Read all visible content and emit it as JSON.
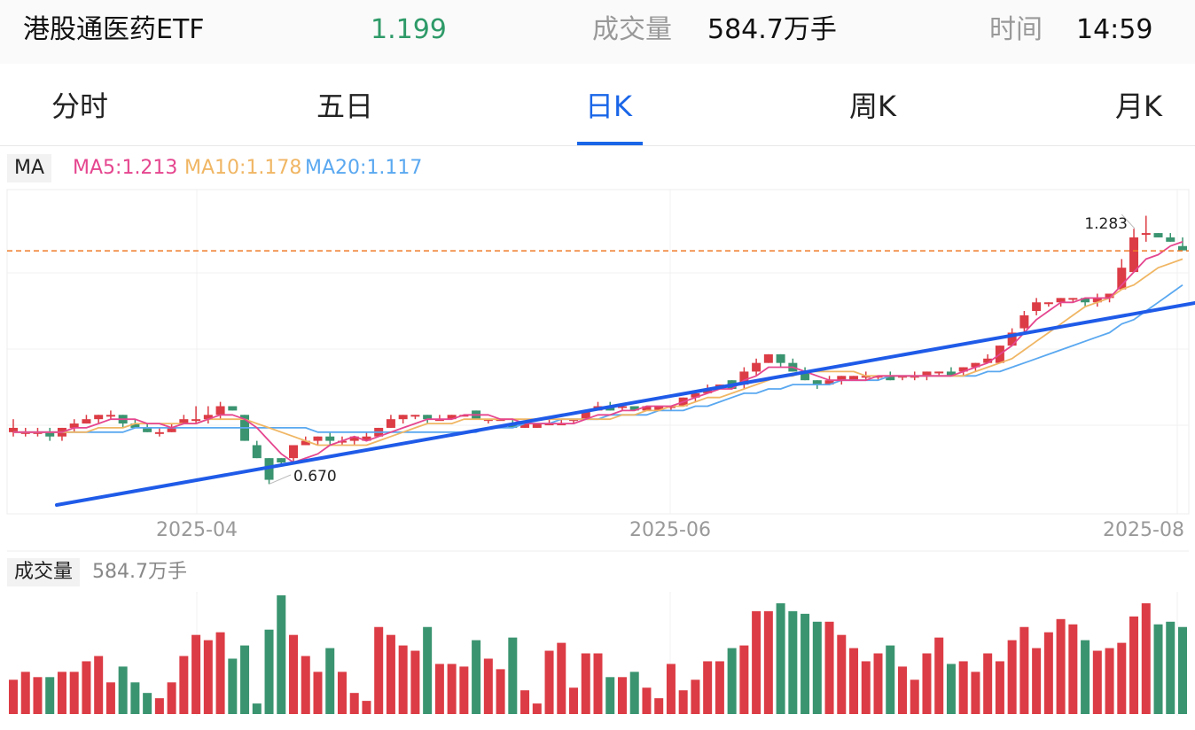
{
  "header": {
    "name": "港股通医药ETF",
    "price": "1.199",
    "volume_label": "成交量",
    "volume_value": "584.7万手",
    "time_label": "时间",
    "time_value": "14:59"
  },
  "tabs": [
    "分时",
    "五日",
    "日K",
    "周K",
    "月K"
  ],
  "active_tab": "日K",
  "ma_legend": {
    "tag": "MA",
    "ma5": "MA5:1.213",
    "ma10": "MA10:1.178",
    "ma20": "MA20:1.117"
  },
  "volume_legend": {
    "tag": "成交量",
    "value": "584.7万手"
  },
  "colors": {
    "up": "#dc3c45",
    "down": "#3a9470",
    "ma5": "#e5468f",
    "ma10": "#f0b664",
    "ma20": "#5aa8f0",
    "trendline": "#1f5be8",
    "price_line": "#f07c2a",
    "accent": "#1a66e8"
  },
  "chart_data": {
    "type": "candlestick",
    "x_tick_labels": [
      "2025-04",
      "2025-06",
      "2025-08"
    ],
    "annotations": {
      "high": "1.283",
      "low": "0.670"
    },
    "current_price": 1.199,
    "candles": [
      [
        0.78,
        0.79,
        0.77,
        0.81,
        13
      ],
      [
        0.78,
        0.78,
        0.77,
        0.79,
        16
      ],
      [
        0.78,
        0.78,
        0.77,
        0.79,
        14
      ],
      [
        0.78,
        0.77,
        0.76,
        0.79,
        14
      ],
      [
        0.77,
        0.79,
        0.76,
        0.79,
        16
      ],
      [
        0.79,
        0.8,
        0.78,
        0.81,
        16
      ],
      [
        0.8,
        0.81,
        0.8,
        0.82,
        20
      ],
      [
        0.81,
        0.82,
        0.8,
        0.82,
        22
      ],
      [
        0.82,
        0.82,
        0.81,
        0.83,
        12
      ],
      [
        0.82,
        0.8,
        0.79,
        0.82,
        18
      ],
      [
        0.8,
        0.79,
        0.79,
        0.81,
        12
      ],
      [
        0.79,
        0.78,
        0.78,
        0.8,
        8
      ],
      [
        0.78,
        0.78,
        0.77,
        0.79,
        6
      ],
      [
        0.78,
        0.79,
        0.78,
        0.8,
        12
      ],
      [
        0.8,
        0.81,
        0.8,
        0.82,
        22
      ],
      [
        0.81,
        0.81,
        0.8,
        0.84,
        30
      ],
      [
        0.81,
        0.82,
        0.8,
        0.84,
        28
      ],
      [
        0.82,
        0.84,
        0.81,
        0.85,
        31
      ],
      [
        0.84,
        0.83,
        0.83,
        0.84,
        21
      ],
      [
        0.82,
        0.76,
        0.76,
        0.82,
        26
      ],
      [
        0.75,
        0.72,
        0.72,
        0.76,
        4
      ],
      [
        0.72,
        0.67,
        0.66,
        0.72,
        32
      ],
      [
        0.72,
        0.71,
        0.7,
        0.72,
        45
      ],
      [
        0.72,
        0.75,
        0.71,
        0.75,
        30
      ],
      [
        0.75,
        0.76,
        0.75,
        0.77,
        22
      ],
      [
        0.76,
        0.77,
        0.75,
        0.77,
        16
      ],
      [
        0.77,
        0.76,
        0.75,
        0.78,
        25
      ],
      [
        0.76,
        0.76,
        0.75,
        0.77,
        16
      ],
      [
        0.76,
        0.77,
        0.75,
        0.77,
        8
      ],
      [
        0.76,
        0.77,
        0.76,
        0.78,
        5
      ],
      [
        0.77,
        0.79,
        0.77,
        0.79,
        33
      ],
      [
        0.79,
        0.81,
        0.79,
        0.82,
        30
      ],
      [
        0.81,
        0.82,
        0.8,
        0.82,
        26
      ],
      [
        0.82,
        0.82,
        0.81,
        0.82,
        24
      ],
      [
        0.82,
        0.81,
        0.8,
        0.82,
        33
      ],
      [
        0.81,
        0.81,
        0.81,
        0.82,
        19
      ],
      [
        0.81,
        0.82,
        0.81,
        0.82,
        19
      ],
      [
        0.82,
        0.82,
        0.82,
        0.82,
        18
      ],
      [
        0.83,
        0.81,
        0.81,
        0.83,
        28
      ],
      [
        0.81,
        0.81,
        0.8,
        0.81,
        21
      ],
      [
        0.81,
        0.81,
        0.81,
        0.81,
        17
      ],
      [
        0.8,
        0.79,
        0.79,
        0.81,
        29
      ],
      [
        0.79,
        0.8,
        0.79,
        0.8,
        9
      ],
      [
        0.79,
        0.8,
        0.79,
        0.8,
        4
      ],
      [
        0.8,
        0.8,
        0.8,
        0.81,
        24
      ],
      [
        0.8,
        0.8,
        0.8,
        0.81,
        27
      ],
      [
        0.81,
        0.81,
        0.8,
        0.81,
        10
      ],
      [
        0.81,
        0.83,
        0.81,
        0.83,
        23
      ],
      [
        0.83,
        0.84,
        0.83,
        0.85,
        23
      ],
      [
        0.84,
        0.83,
        0.83,
        0.85,
        14
      ],
      [
        0.84,
        0.84,
        0.83,
        0.84,
        14
      ],
      [
        0.84,
        0.83,
        0.83,
        0.84,
        16
      ],
      [
        0.83,
        0.84,
        0.83,
        0.84,
        10
      ],
      [
        0.83,
        0.84,
        0.83,
        0.84,
        6
      ],
      [
        0.84,
        0.84,
        0.83,
        0.84,
        19
      ],
      [
        0.84,
        0.86,
        0.84,
        0.86,
        9
      ],
      [
        0.86,
        0.87,
        0.85,
        0.87,
        13
      ],
      [
        0.87,
        0.88,
        0.87,
        0.89,
        20
      ],
      [
        0.88,
        0.89,
        0.88,
        0.89,
        20
      ],
      [
        0.9,
        0.88,
        0.88,
        0.9,
        25
      ],
      [
        0.89,
        0.92,
        0.88,
        0.93,
        26
      ],
      [
        0.92,
        0.94,
        0.91,
        0.95,
        39
      ],
      [
        0.94,
        0.96,
        0.94,
        0.96,
        39
      ],
      [
        0.96,
        0.94,
        0.93,
        0.96,
        42
      ],
      [
        0.94,
        0.92,
        0.92,
        0.95,
        39
      ],
      [
        0.92,
        0.9,
        0.9,
        0.93,
        38
      ],
      [
        0.9,
        0.89,
        0.88,
        0.9,
        35
      ],
      [
        0.89,
        0.9,
        0.89,
        0.91,
        35
      ],
      [
        0.9,
        0.91,
        0.89,
        0.91,
        30
      ],
      [
        0.9,
        0.91,
        0.9,
        0.91,
        25
      ],
      [
        0.91,
        0.91,
        0.9,
        0.92,
        20
      ],
      [
        0.91,
        0.91,
        0.9,
        0.91,
        23
      ],
      [
        0.91,
        0.9,
        0.9,
        0.92,
        26
      ],
      [
        0.91,
        0.91,
        0.9,
        0.91,
        18
      ],
      [
        0.91,
        0.91,
        0.9,
        0.92,
        13
      ],
      [
        0.91,
        0.92,
        0.9,
        0.92,
        23
      ],
      [
        0.92,
        0.92,
        0.91,
        0.92,
        29
      ],
      [
        0.92,
        0.91,
        0.91,
        0.93,
        19
      ],
      [
        0.92,
        0.93,
        0.91,
        0.93,
        20
      ],
      [
        0.93,
        0.94,
        0.92,
        0.94,
        16
      ],
      [
        0.94,
        0.95,
        0.94,
        0.96,
        23
      ],
      [
        0.94,
        0.98,
        0.94,
        0.98,
        20
      ],
      [
        0.98,
        1.01,
        0.98,
        1.02,
        28
      ],
      [
        1.02,
        1.05,
        1.01,
        1.06,
        33
      ],
      [
        1.06,
        1.08,
        1.05,
        1.09,
        25
      ],
      [
        1.08,
        1.08,
        1.07,
        1.08,
        31
      ],
      [
        1.08,
        1.09,
        1.07,
        1.09,
        36
      ],
      [
        1.09,
        1.09,
        1.08,
        1.09,
        34
      ],
      [
        1.09,
        1.08,
        1.07,
        1.09,
        28
      ],
      [
        1.08,
        1.09,
        1.07,
        1.1,
        24
      ],
      [
        1.09,
        1.1,
        1.08,
        1.1,
        25
      ],
      [
        1.11,
        1.16,
        1.11,
        1.18,
        27
      ],
      [
        1.15,
        1.23,
        1.15,
        1.25,
        37
      ],
      [
        1.24,
        1.24,
        1.22,
        1.28,
        42
      ],
      [
        1.24,
        1.23,
        1.23,
        1.24,
        34
      ],
      [
        1.23,
        1.22,
        1.22,
        1.24,
        35
      ],
      [
        1.21,
        1.2,
        1.2,
        1.23,
        33
      ]
    ],
    "ma5": [
      0.78,
      0.78,
      0.78,
      0.78,
      0.78,
      0.79,
      0.79,
      0.8,
      0.81,
      0.81,
      0.81,
      0.8,
      0.8,
      0.79,
      0.8,
      0.8,
      0.81,
      0.82,
      0.82,
      0.81,
      0.79,
      0.76,
      0.73,
      0.71,
      0.72,
      0.73,
      0.75,
      0.76,
      0.77,
      0.76,
      0.77,
      0.78,
      0.79,
      0.8,
      0.81,
      0.81,
      0.81,
      0.82,
      0.82,
      0.82,
      0.81,
      0.81,
      0.8,
      0.8,
      0.8,
      0.8,
      0.8,
      0.81,
      0.82,
      0.82,
      0.83,
      0.83,
      0.84,
      0.84,
      0.84,
      0.85,
      0.86,
      0.87,
      0.88,
      0.88,
      0.9,
      0.91,
      0.93,
      0.93,
      0.93,
      0.92,
      0.91,
      0.9,
      0.9,
      0.9,
      0.9,
      0.91,
      0.91,
      0.91,
      0.91,
      0.91,
      0.91,
      0.91,
      0.92,
      0.93,
      0.94,
      0.96,
      0.98,
      1.01,
      1.04,
      1.06,
      1.08,
      1.08,
      1.09,
      1.09,
      1.09,
      1.12,
      1.15,
      1.18,
      1.19,
      1.21,
      1.22
    ],
    "ma10": [
      0.78,
      0.78,
      0.78,
      0.78,
      0.78,
      0.78,
      0.78,
      0.79,
      0.79,
      0.79,
      0.8,
      0.8,
      0.8,
      0.8,
      0.8,
      0.8,
      0.81,
      0.81,
      0.81,
      0.81,
      0.8,
      0.79,
      0.78,
      0.77,
      0.76,
      0.75,
      0.75,
      0.75,
      0.75,
      0.75,
      0.76,
      0.77,
      0.78,
      0.79,
      0.8,
      0.8,
      0.8,
      0.81,
      0.81,
      0.81,
      0.81,
      0.81,
      0.81,
      0.81,
      0.81,
      0.81,
      0.81,
      0.81,
      0.81,
      0.81,
      0.82,
      0.82,
      0.83,
      0.83,
      0.84,
      0.84,
      0.85,
      0.86,
      0.86,
      0.87,
      0.88,
      0.89,
      0.9,
      0.91,
      0.91,
      0.92,
      0.92,
      0.92,
      0.92,
      0.92,
      0.91,
      0.91,
      0.91,
      0.91,
      0.91,
      0.91,
      0.91,
      0.91,
      0.91,
      0.92,
      0.93,
      0.94,
      0.95,
      0.97,
      0.99,
      1.01,
      1.03,
      1.05,
      1.07,
      1.08,
      1.09,
      1.11,
      1.12,
      1.14,
      1.16,
      1.17,
      1.18
    ],
    "ma20": [
      0.78,
      0.78,
      0.78,
      0.78,
      0.78,
      0.78,
      0.78,
      0.78,
      0.78,
      0.78,
      0.79,
      0.79,
      0.79,
      0.79,
      0.79,
      0.79,
      0.79,
      0.79,
      0.79,
      0.79,
      0.79,
      0.79,
      0.79,
      0.79,
      0.79,
      0.78,
      0.78,
      0.78,
      0.78,
      0.78,
      0.78,
      0.78,
      0.78,
      0.78,
      0.78,
      0.78,
      0.78,
      0.78,
      0.78,
      0.79,
      0.79,
      0.79,
      0.8,
      0.8,
      0.8,
      0.81,
      0.81,
      0.81,
      0.81,
      0.82,
      0.82,
      0.82,
      0.82,
      0.83,
      0.83,
      0.83,
      0.84,
      0.84,
      0.85,
      0.86,
      0.87,
      0.87,
      0.88,
      0.88,
      0.89,
      0.89,
      0.89,
      0.89,
      0.9,
      0.9,
      0.9,
      0.9,
      0.91,
      0.91,
      0.91,
      0.91,
      0.91,
      0.91,
      0.91,
      0.91,
      0.92,
      0.92,
      0.93,
      0.94,
      0.95,
      0.96,
      0.97,
      0.98,
      0.99,
      1.0,
      1.01,
      1.03,
      1.04,
      1.06,
      1.08,
      1.1,
      1.12
    ]
  }
}
